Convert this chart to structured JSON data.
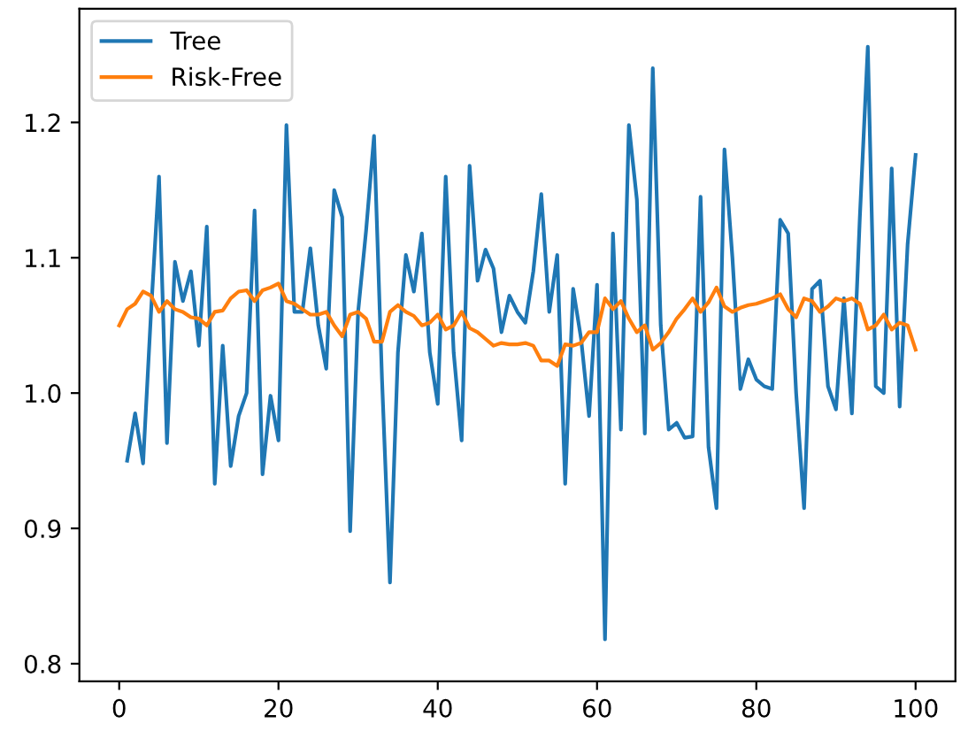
{
  "chart_data": {
    "type": "line",
    "xlim": [
      -5,
      105
    ],
    "ylim": [
      0.787,
      1.284
    ],
    "xticks": [
      0,
      20,
      40,
      60,
      80,
      100
    ],
    "yticks": [
      0.8,
      0.9,
      {
        "value": 1.0,
        "label": "1.0"
      },
      1.1,
      1.2
    ],
    "grid": false,
    "legend": "top left",
    "line_style": "solid",
    "series": [
      {
        "name": "Tree",
        "color": "#1f77b4",
        "x": [
          1,
          2,
          3,
          4,
          5,
          6,
          7,
          8,
          9,
          10,
          11,
          12,
          13,
          14,
          15,
          16,
          17,
          18,
          19,
          20,
          21,
          22,
          23,
          24,
          25,
          26,
          27,
          28,
          29,
          30,
          31,
          32,
          33,
          34,
          35,
          36,
          37,
          38,
          39,
          40,
          41,
          42,
          43,
          44,
          45,
          46,
          47,
          48,
          49,
          50,
          51,
          52,
          53,
          54,
          55,
          56,
          57,
          58,
          59,
          60,
          61,
          62,
          63,
          64,
          65,
          66,
          67,
          68,
          69,
          70,
          71,
          72,
          73,
          74,
          75,
          76,
          77,
          78,
          79,
          80,
          81,
          82,
          83,
          84,
          85,
          86,
          87,
          88,
          89,
          90,
          91,
          92,
          93,
          94,
          95,
          96,
          97,
          98,
          99,
          100
        ],
        "values": [
          0.95,
          0.985,
          0.948,
          1.06,
          1.16,
          0.963,
          1.097,
          1.068,
          1.09,
          1.035,
          1.123,
          0.933,
          1.035,
          0.946,
          0.983,
          1.0,
          1.135,
          0.94,
          0.998,
          0.965,
          1.198,
          1.06,
          1.06,
          1.107,
          1.05,
          1.018,
          1.15,
          1.13,
          0.898,
          1.06,
          1.12,
          1.19,
          1.01,
          0.86,
          1.03,
          1.102,
          1.075,
          1.118,
          1.03,
          0.992,
          1.16,
          1.03,
          0.965,
          1.168,
          1.083,
          1.106,
          1.092,
          1.045,
          1.072,
          1.06,
          1.052,
          1.09,
          1.147,
          1.06,
          1.102,
          0.933,
          1.077,
          1.04,
          0.983,
          1.08,
          0.818,
          1.118,
          0.973,
          1.198,
          1.143,
          0.97,
          1.24,
          1.05,
          0.973,
          0.978,
          0.967,
          0.968,
          1.145,
          0.96,
          0.915,
          1.18,
          1.1,
          1.003,
          1.025,
          1.01,
          1.005,
          1.003,
          1.128,
          1.118,
          1.0,
          0.915,
          1.077,
          1.083,
          1.005,
          0.988,
          1.07,
          0.985,
          1.13,
          1.256,
          1.005,
          1.0,
          1.166,
          0.99,
          1.11,
          1.176
        ]
      },
      {
        "name": "Risk-Free",
        "color": "#ff7f0e",
        "x": [
          0,
          1,
          2,
          3,
          4,
          5,
          6,
          7,
          8,
          9,
          10,
          11,
          12,
          13,
          14,
          15,
          16,
          17,
          18,
          19,
          20,
          21,
          22,
          23,
          24,
          25,
          26,
          27,
          28,
          29,
          30,
          31,
          32,
          33,
          34,
          35,
          36,
          37,
          38,
          39,
          40,
          41,
          42,
          43,
          44,
          45,
          46,
          47,
          48,
          49,
          50,
          51,
          52,
          53,
          54,
          55,
          56,
          57,
          58,
          59,
          60,
          61,
          62,
          63,
          64,
          65,
          66,
          67,
          68,
          69,
          70,
          71,
          72,
          73,
          74,
          75,
          76,
          77,
          78,
          79,
          80,
          81,
          82,
          83,
          84,
          85,
          86,
          87,
          88,
          89,
          90,
          91,
          92,
          93,
          94,
          95,
          96,
          97,
          98,
          99,
          100
        ],
        "values": [
          1.05,
          1.062,
          1.066,
          1.075,
          1.072,
          1.06,
          1.068,
          1.062,
          1.06,
          1.056,
          1.055,
          1.05,
          1.06,
          1.061,
          1.07,
          1.075,
          1.076,
          1.068,
          1.076,
          1.078,
          1.081,
          1.068,
          1.066,
          1.062,
          1.058,
          1.058,
          1.06,
          1.05,
          1.042,
          1.058,
          1.06,
          1.055,
          1.038,
          1.038,
          1.06,
          1.065,
          1.06,
          1.057,
          1.05,
          1.052,
          1.058,
          1.047,
          1.05,
          1.06,
          1.048,
          1.045,
          1.04,
          1.035,
          1.037,
          1.036,
          1.036,
          1.037,
          1.035,
          1.024,
          1.024,
          1.02,
          1.036,
          1.035,
          1.037,
          1.045,
          1.045,
          1.07,
          1.062,
          1.068,
          1.055,
          1.045,
          1.05,
          1.032,
          1.037,
          1.045,
          1.055,
          1.062,
          1.07,
          1.06,
          1.067,
          1.078,
          1.064,
          1.06,
          1.063,
          1.065,
          1.066,
          1.068,
          1.07,
          1.073,
          1.062,
          1.056,
          1.07,
          1.068,
          1.06,
          1.064,
          1.07,
          1.068,
          1.07,
          1.066,
          1.047,
          1.05,
          1.058,
          1.047,
          1.052,
          1.05,
          1.032
        ]
      }
    ]
  }
}
